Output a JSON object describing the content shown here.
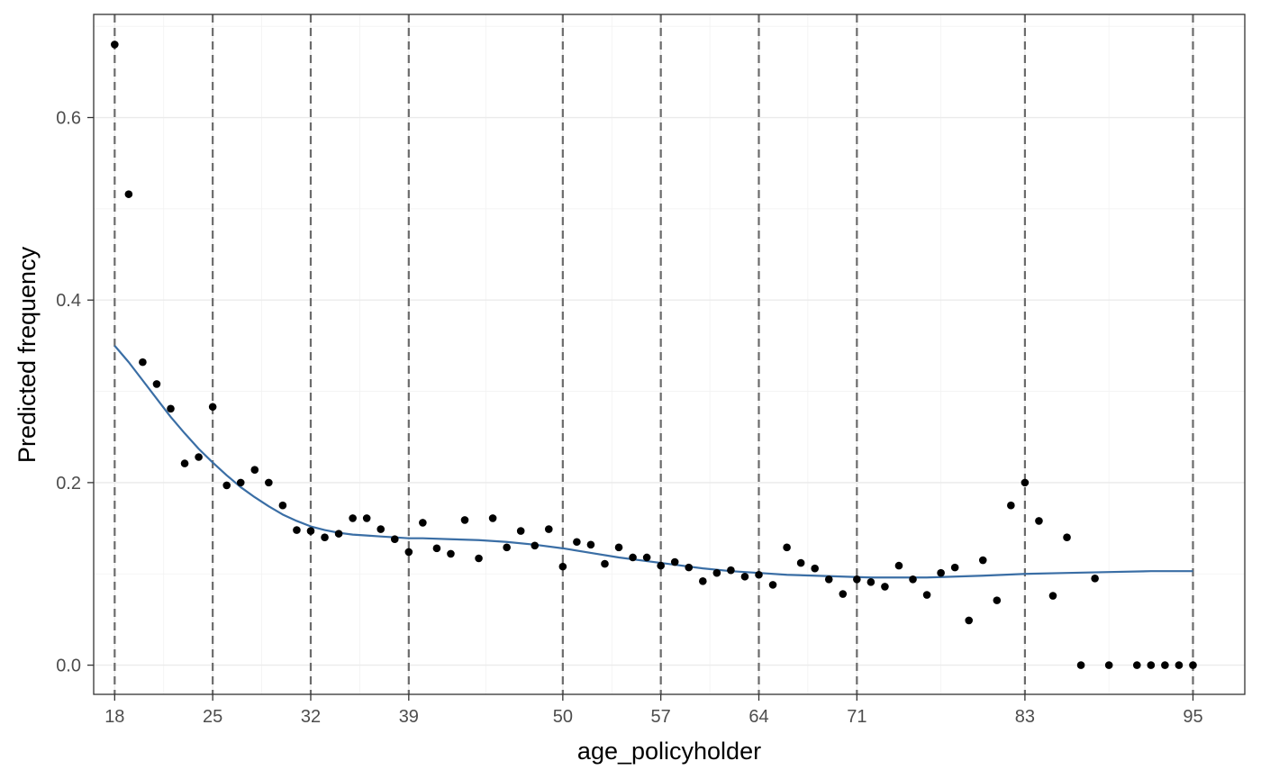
{
  "chart_data": {
    "type": "scatter",
    "xlabel": "age_policyholder",
    "ylabel": "Predicted frequency",
    "xlim": [
      16.5,
      98.7
    ],
    "ylim": [
      -0.032,
      0.713
    ],
    "x_ticks": [
      18,
      25,
      32,
      39,
      50,
      57,
      64,
      71,
      83,
      95
    ],
    "x_tick_labels": [
      "18",
      "25",
      "32",
      "39",
      "50",
      "57",
      "64",
      "71",
      "83",
      "95"
    ],
    "y_ticks": [
      0.0,
      0.2,
      0.4,
      0.6
    ],
    "y_tick_labels": [
      "0.0",
      "0.2",
      "0.4",
      "0.6"
    ],
    "grid": true,
    "dashed_vlines": [
      18,
      25,
      32,
      39,
      50,
      57,
      64,
      71,
      83,
      95
    ],
    "points": [
      {
        "x": 18,
        "y": 0.68
      },
      {
        "x": 19,
        "y": 0.516
      },
      {
        "x": 20,
        "y": 0.332
      },
      {
        "x": 21,
        "y": 0.308
      },
      {
        "x": 22,
        "y": 0.281
      },
      {
        "x": 23,
        "y": 0.221
      },
      {
        "x": 24,
        "y": 0.228
      },
      {
        "x": 25,
        "y": 0.283
      },
      {
        "x": 26,
        "y": 0.197
      },
      {
        "x": 27,
        "y": 0.2
      },
      {
        "x": 28,
        "y": 0.214
      },
      {
        "x": 29,
        "y": 0.2
      },
      {
        "x": 30,
        "y": 0.175
      },
      {
        "x": 31,
        "y": 0.148
      },
      {
        "x": 32,
        "y": 0.147
      },
      {
        "x": 33,
        "y": 0.14
      },
      {
        "x": 34,
        "y": 0.144
      },
      {
        "x": 35,
        "y": 0.161
      },
      {
        "x": 36,
        "y": 0.161
      },
      {
        "x": 37,
        "y": 0.149
      },
      {
        "x": 38,
        "y": 0.138
      },
      {
        "x": 39,
        "y": 0.124
      },
      {
        "x": 40,
        "y": 0.156
      },
      {
        "x": 41,
        "y": 0.128
      },
      {
        "x": 42,
        "y": 0.122
      },
      {
        "x": 43,
        "y": 0.159
      },
      {
        "x": 44,
        "y": 0.117
      },
      {
        "x": 45,
        "y": 0.161
      },
      {
        "x": 46,
        "y": 0.129
      },
      {
        "x": 47,
        "y": 0.147
      },
      {
        "x": 48,
        "y": 0.131
      },
      {
        "x": 49,
        "y": 0.149
      },
      {
        "x": 50,
        "y": 0.108
      },
      {
        "x": 51,
        "y": 0.135
      },
      {
        "x": 52,
        "y": 0.132
      },
      {
        "x": 53,
        "y": 0.111
      },
      {
        "x": 54,
        "y": 0.129
      },
      {
        "x": 55,
        "y": 0.118
      },
      {
        "x": 56,
        "y": 0.118
      },
      {
        "x": 57,
        "y": 0.109
      },
      {
        "x": 58,
        "y": 0.113
      },
      {
        "x": 59,
        "y": 0.107
      },
      {
        "x": 60,
        "y": 0.092
      },
      {
        "x": 61,
        "y": 0.101
      },
      {
        "x": 62,
        "y": 0.104
      },
      {
        "x": 63,
        "y": 0.097
      },
      {
        "x": 64,
        "y": 0.099
      },
      {
        "x": 65,
        "y": 0.088
      },
      {
        "x": 66,
        "y": 0.129
      },
      {
        "x": 67,
        "y": 0.112
      },
      {
        "x": 68,
        "y": 0.106
      },
      {
        "x": 69,
        "y": 0.094
      },
      {
        "x": 70,
        "y": 0.078
      },
      {
        "x": 71,
        "y": 0.094
      },
      {
        "x": 72,
        "y": 0.091
      },
      {
        "x": 73,
        "y": 0.086
      },
      {
        "x": 74,
        "y": 0.109
      },
      {
        "x": 75,
        "y": 0.094
      },
      {
        "x": 76,
        "y": 0.077
      },
      {
        "x": 77,
        "y": 0.101
      },
      {
        "x": 78,
        "y": 0.107
      },
      {
        "x": 79,
        "y": 0.049
      },
      {
        "x": 80,
        "y": 0.115
      },
      {
        "x": 81,
        "y": 0.071
      },
      {
        "x": 82,
        "y": 0.175
      },
      {
        "x": 83,
        "y": 0.2
      },
      {
        "x": 84,
        "y": 0.158
      },
      {
        "x": 85,
        "y": 0.076
      },
      {
        "x": 86,
        "y": 0.14
      },
      {
        "x": 87,
        "y": 0.0
      },
      {
        "x": 88,
        "y": 0.095
      },
      {
        "x": 89,
        "y": 0.0
      },
      {
        "x": 91,
        "y": 0.0
      },
      {
        "x": 92,
        "y": 0.0
      },
      {
        "x": 93,
        "y": 0.0
      },
      {
        "x": 94,
        "y": 0.0
      },
      {
        "x": 95,
        "y": 0.0
      }
    ],
    "fit_line": {
      "color": "#3a6ea5",
      "x": [
        18,
        19,
        20,
        21,
        22,
        23,
        24,
        25,
        26,
        27,
        28,
        29,
        30,
        31,
        32,
        33,
        34,
        35,
        36,
        37,
        38,
        39,
        40,
        42,
        44,
        46,
        48,
        50,
        52,
        54,
        56,
        58,
        60,
        62,
        64,
        66,
        68,
        70,
        72,
        74,
        76,
        78,
        80,
        83,
        86,
        89,
        92,
        95
      ],
      "y": [
        0.35,
        0.332,
        0.312,
        0.292,
        0.272,
        0.254,
        0.237,
        0.222,
        0.208,
        0.195,
        0.184,
        0.174,
        0.165,
        0.158,
        0.152,
        0.148,
        0.145,
        0.143,
        0.142,
        0.141,
        0.14,
        0.139,
        0.139,
        0.138,
        0.137,
        0.135,
        0.132,
        0.128,
        0.123,
        0.118,
        0.114,
        0.11,
        0.106,
        0.103,
        0.101,
        0.099,
        0.098,
        0.097,
        0.096,
        0.096,
        0.096,
        0.097,
        0.098,
        0.1,
        0.101,
        0.102,
        0.103,
        0.103
      ]
    },
    "point_color": "#000000",
    "vline_color": "#6b6b6b"
  }
}
